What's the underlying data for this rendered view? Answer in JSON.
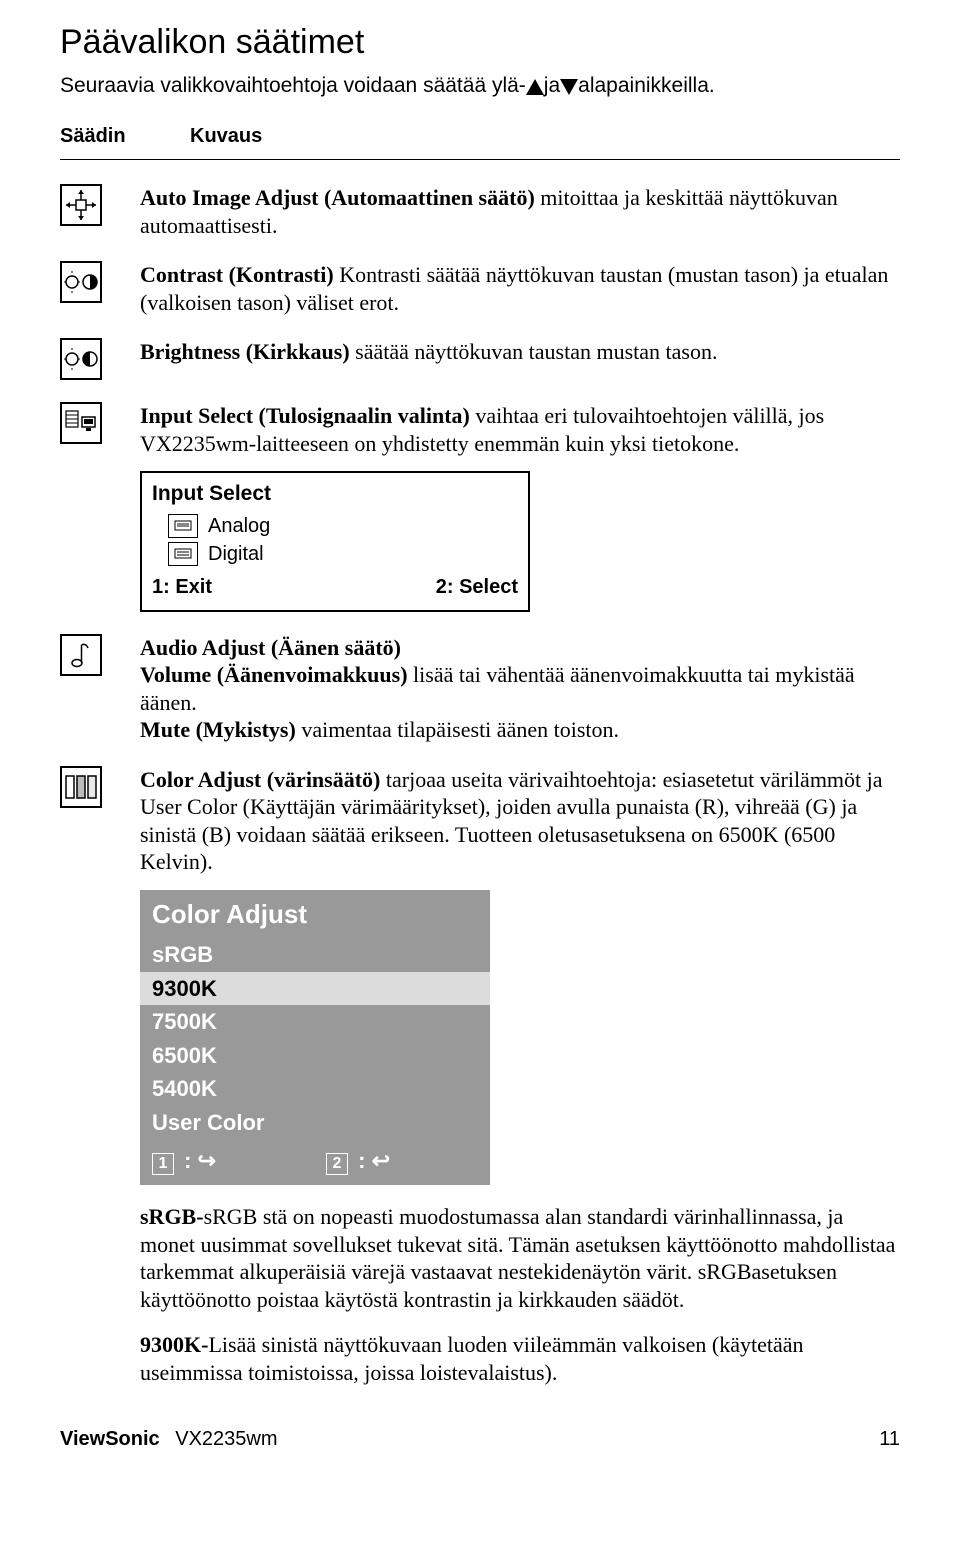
{
  "heading": "Päävalikon säätimet",
  "intro_before": "Seuraavia valikkovaihtoehtoja voidaan säätää ylä-",
  "intro_mid": "ja",
  "intro_after": "alapainikkeilla.",
  "header_col1": "Säädin",
  "header_col2": "Kuvaus",
  "rows": {
    "auto_image": {
      "bold": "Auto Image Adjust (Automaattinen säätö)",
      "rest": " mitoittaa ja keskittää näyttökuvan automaattisesti."
    },
    "contrast": {
      "bold": "Contrast (Kontrasti)",
      "rest": " Kontrasti säätää näyttökuvan taustan (mustan tason) ja etualan (valkoisen tason) väliset erot."
    },
    "brightness": {
      "bold": "Brightness (Kirkkaus)",
      "rest": " säätää näyttökuvan taustan mustan tason."
    },
    "input_select": {
      "bold": "Input Select (Tulosignaalin valinta)",
      "rest": " vaihtaa eri tulovaihtoehtojen välillä, jos VX2235wm-laitteeseen on yhdistetty enemmän kuin yksi tietokone."
    },
    "audio": {
      "bold1": "Audio Adjust (Äänen säätö)",
      "line2_bold": "Volume (Äänenvoimakkuus)",
      "line2_rest": " lisää tai vähentää äänenvoimakkuutta tai mykistää äänen.",
      "line3_bold": "Mute (Mykistys)",
      "line3_rest": " vaimentaa tilapäisesti äänen toiston."
    },
    "color": {
      "bold": "Color Adjust (värinsäätö)",
      "rest": " tarjoaa useita värivaihtoehtoja: esiasetetut värilämmöt ja User Color (Käyttäjän värimääritykset), joiden avulla punaista (R), vihreää (G) ja sinistä (B) voidaan säätää erikseen. Tuotteen oletusasetuksena on 6500K (6500 Kelvin)."
    }
  },
  "osd_input": {
    "title": "Input Select",
    "opt1": "Analog",
    "opt2": "Digital",
    "exit": "1: Exit",
    "select": "2: Select"
  },
  "osd_color": {
    "title": "Color Adjust",
    "opts": [
      "sRGB",
      "9300K",
      "7500K",
      "6500K",
      "5400K",
      "User Color"
    ],
    "selected_index": 1,
    "f1": "1",
    "f2": "2",
    "arrow_out": "↪",
    "arrow_in": "↩"
  },
  "srgb_block": {
    "bold": "sRGB-",
    "rest": "sRGB stä on nopeasti muodostumassa alan standardi värinhallinnassa, ja monet uusimmat sovellukset tukevat sitä. Tämän asetuksen käyttöönotto mahdollistaa tarkemmat alkuperäisiä värejä vastaavat nestekidenäytön värit. sRGBasetuksen käyttöönotto poistaa käytöstä kontrastin ja kirkkauden säädöt."
  },
  "k9300_block": {
    "bold": "9300K-",
    "rest": "Lisää sinistä näyttökuvaan luoden viileämmän valkoisen (käytetään useimmissa toimistoissa, joissa loistevalaistus)."
  },
  "footer": {
    "brand": "ViewSonic",
    "model": "VX2235wm",
    "page": "11"
  },
  "colors": {
    "osd_bg": "#999999",
    "osd_sel_bg": "#dcdcdc"
  }
}
